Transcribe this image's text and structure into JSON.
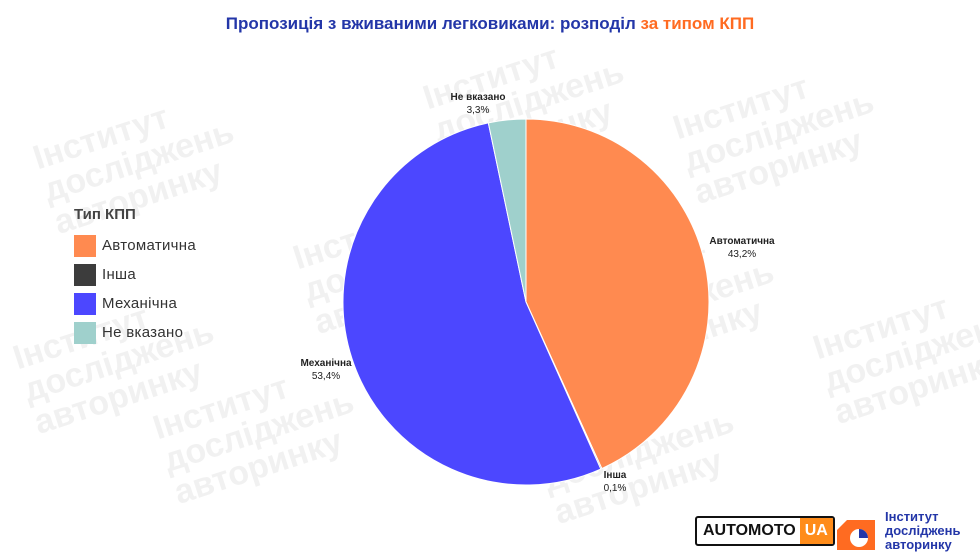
{
  "title": {
    "main": "Пропозиція з вживаними легковиками: розподіл ",
    "accent": "за типом КПП"
  },
  "legend": {
    "title": "Тип КПП",
    "items": [
      {
        "label": "Автоматична",
        "color": "#ff8a50"
      },
      {
        "label": "Інша",
        "color": "#3c3c3c"
      },
      {
        "label": "Механічна",
        "color": "#4c47ff"
      },
      {
        "label": "Не вказано",
        "color": "#9fd0cc"
      }
    ]
  },
  "chart_data": {
    "type": "pie",
    "title": "Пропозиція з вживаними легковиками: розподіл за типом КПП",
    "legend_title": "Тип КПП",
    "legend_position": "left",
    "slices": [
      {
        "name": "Автоматична",
        "value": 43.2,
        "label": "43,2%",
        "color": "#ff8a50"
      },
      {
        "name": "Інша",
        "value": 0.1,
        "label": "0,1%",
        "color": "#3c3c3c"
      },
      {
        "name": "Механічна",
        "value": 53.4,
        "label": "53,4%",
        "color": "#4c47ff"
      },
      {
        "name": "Не вказано",
        "value": 3.3,
        "label": "3,3%",
        "color": "#9fd0cc"
      }
    ]
  },
  "watermark": {
    "text": "Інститут\nдосліджень\nавторинку"
  },
  "footer": {
    "automoto_part1": "AUTOMOTO",
    "automoto_part2": "UA",
    "institute_line1": "Інститут",
    "institute_line2": "досліджень",
    "institute_line3": "авторинку"
  }
}
